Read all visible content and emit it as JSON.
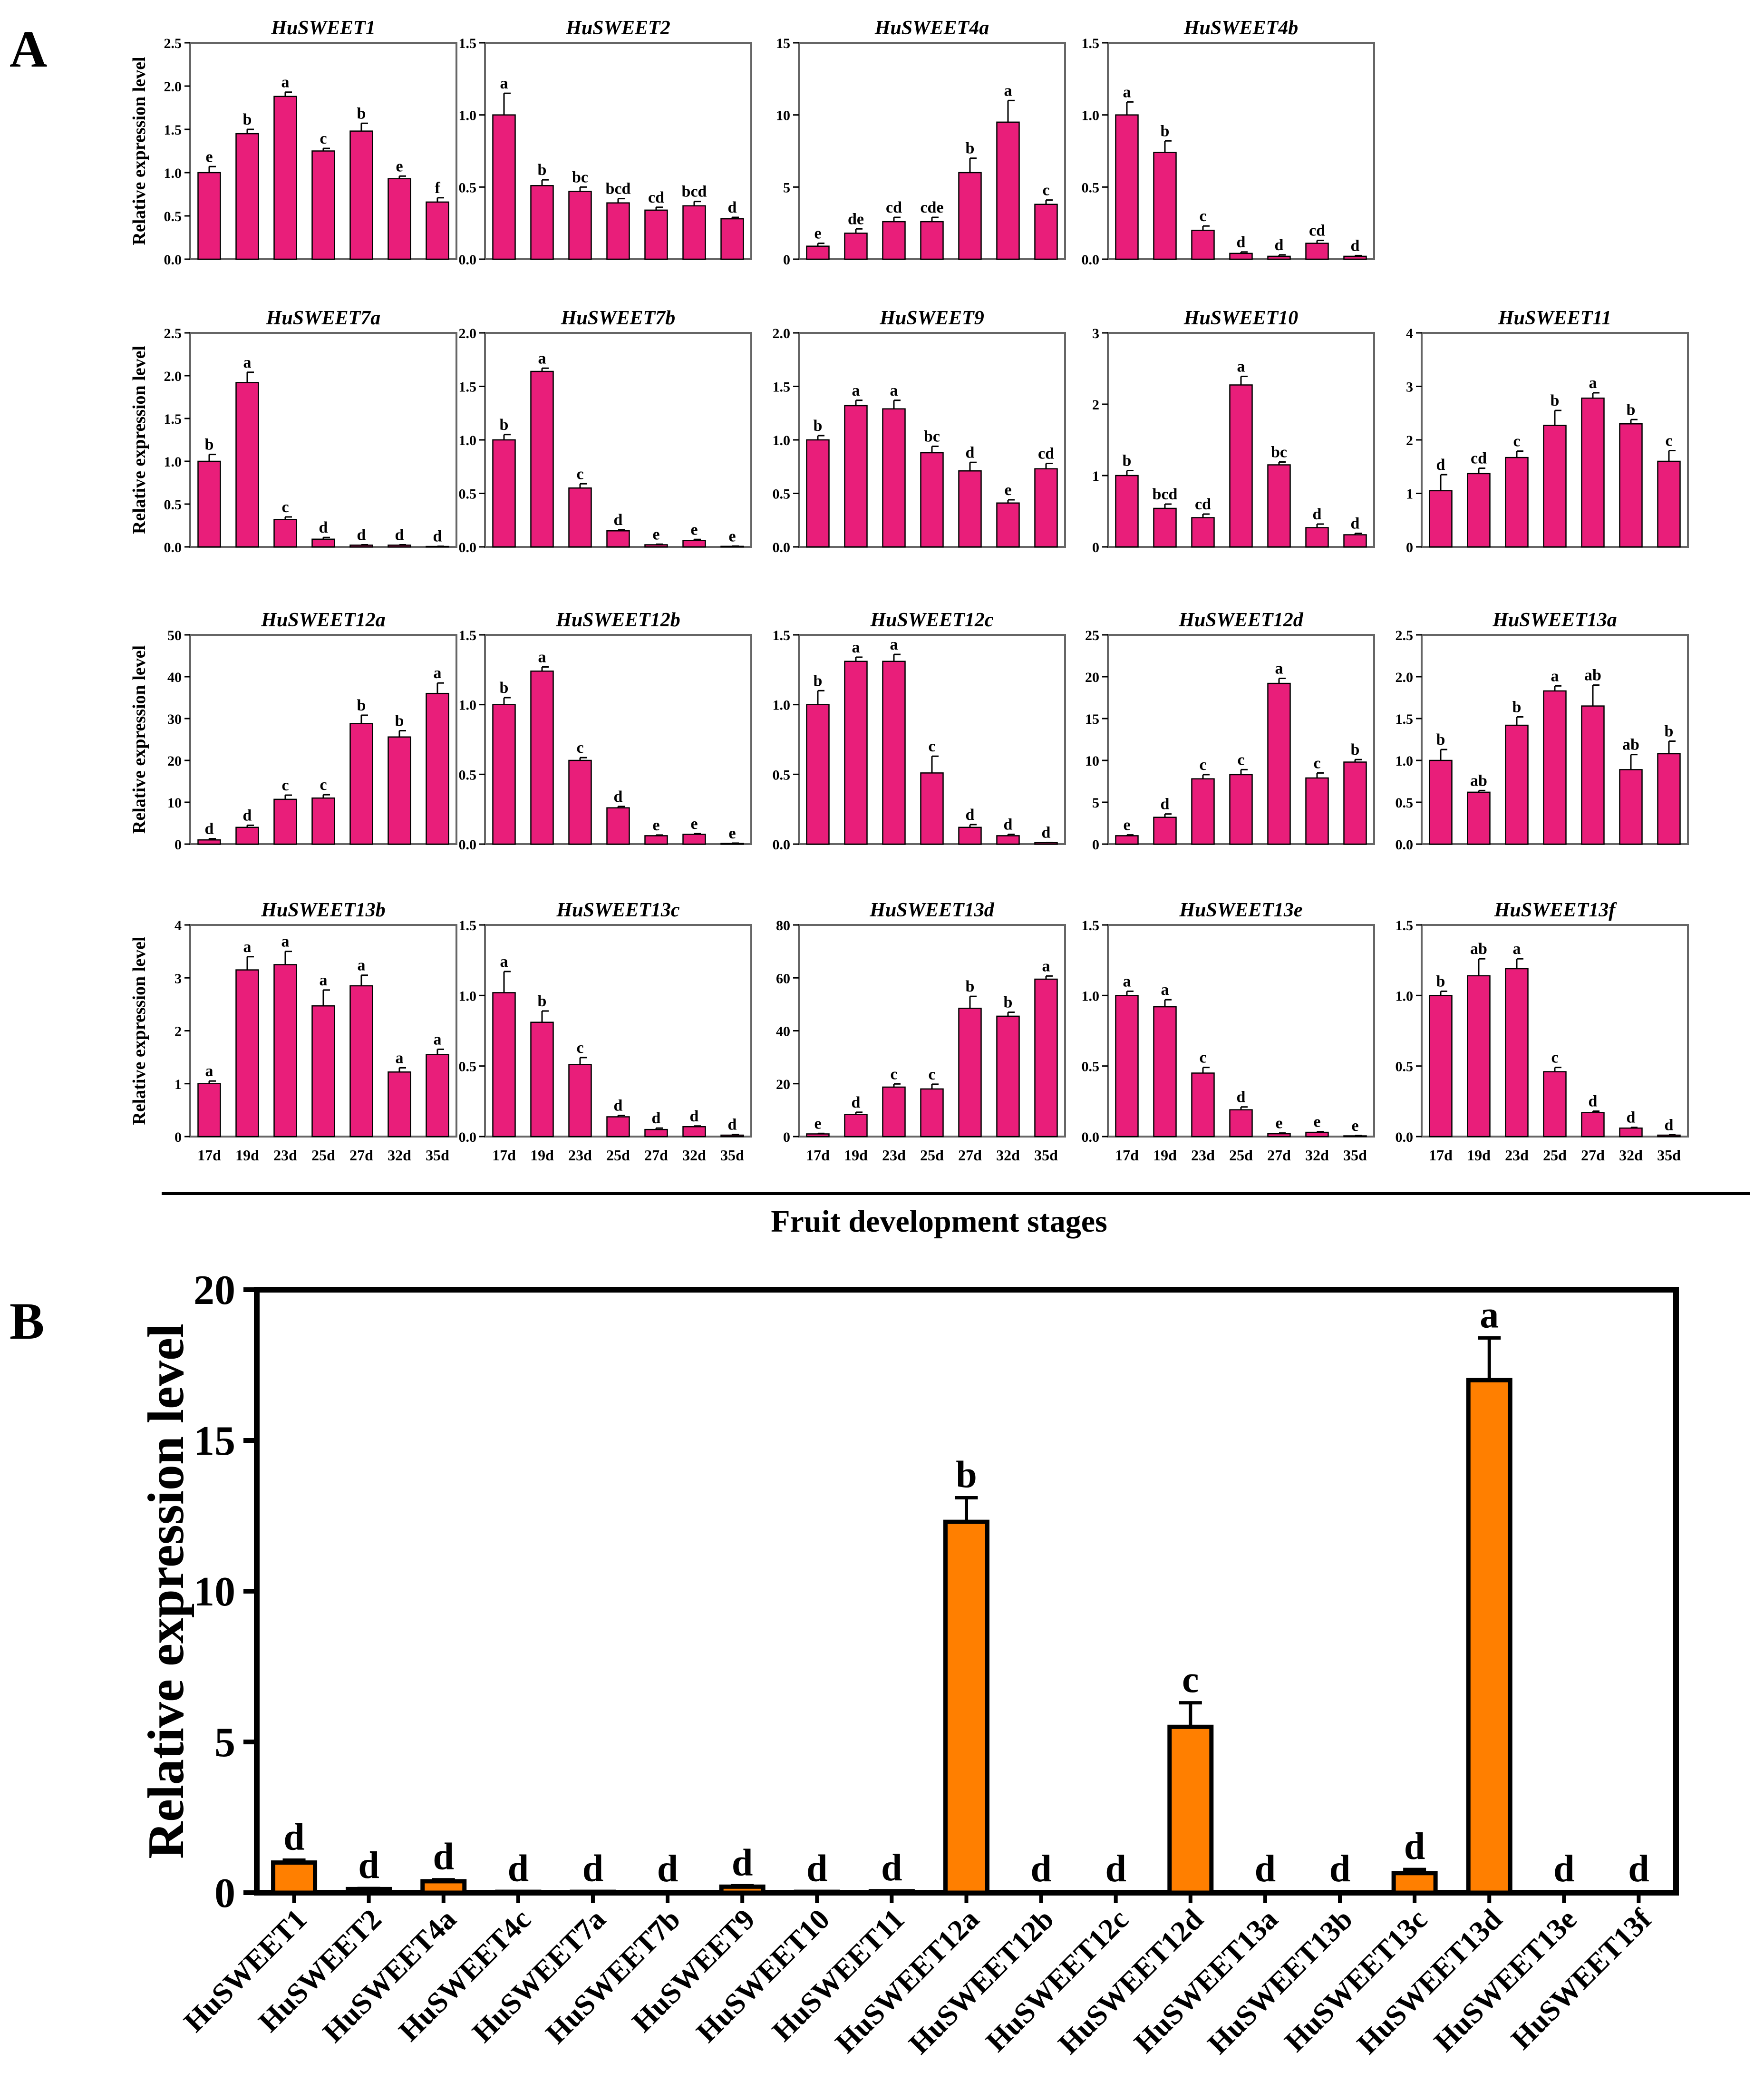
{
  "colors": {
    "panel_a_bar": "#E91E7A",
    "panel_b_bar": "#FF7F00",
    "axis": "#000000",
    "panel_a_frame": "#666666"
  },
  "panel_labels": {
    "a": "A",
    "b": "B"
  },
  "panel_a": {
    "shared_xlabel": "Fruit development stages",
    "ylabel": "Relative expression level",
    "stages": [
      "17d",
      "19d",
      "23d",
      "25d",
      "27d",
      "32d",
      "35d"
    ]
  },
  "chart_data": [
    {
      "type": "bar",
      "title": "HuSWEET1",
      "categories": [
        "17d",
        "19d",
        "23d",
        "25d",
        "27d",
        "32d",
        "35d"
      ],
      "values": [
        1.0,
        1.45,
        1.88,
        1.25,
        1.48,
        0.93,
        0.66
      ],
      "errors": [
        0.07,
        0.05,
        0.05,
        0.03,
        0.09,
        0.03,
        0.05
      ],
      "letters": [
        "e",
        "b",
        "a",
        "c",
        "b",
        "e",
        "f"
      ],
      "ylim": [
        0,
        2.5
      ],
      "yticks": [
        "0.0",
        "0.5",
        "1.0",
        "1.5",
        "2.0",
        "2.5"
      ],
      "ylabel": "Relative expression level"
    },
    {
      "type": "bar",
      "title": "HuSWEET2",
      "categories": [
        "17d",
        "19d",
        "23d",
        "25d",
        "27d",
        "32d",
        "35d"
      ],
      "values": [
        1.0,
        0.51,
        0.47,
        0.39,
        0.34,
        0.37,
        0.28
      ],
      "errors": [
        0.15,
        0.04,
        0.03,
        0.03,
        0.02,
        0.03,
        0.01
      ],
      "letters": [
        "a",
        "b",
        "bc",
        "bcd",
        "cd",
        "bcd",
        "d"
      ],
      "ylim": [
        0,
        1.5
      ],
      "yticks": [
        "0.0",
        "0.5",
        "1.0",
        "1.5"
      ],
      "ylabel": ""
    },
    {
      "type": "bar",
      "title": "HuSWEET4a",
      "categories": [
        "17d",
        "19d",
        "23d",
        "25d",
        "27d",
        "32d",
        "35d"
      ],
      "values": [
        0.9,
        1.8,
        2.6,
        2.6,
        6.0,
        9.5,
        3.8
      ],
      "errors": [
        0.2,
        0.3,
        0.3,
        0.3,
        1.0,
        1.5,
        0.3
      ],
      "letters": [
        "e",
        "de",
        "cd",
        "cde",
        "b",
        "a",
        "c"
      ],
      "ylim": [
        0,
        15
      ],
      "yticks": [
        "0",
        "5",
        "10",
        "15"
      ],
      "ylabel": ""
    },
    {
      "type": "bar",
      "title": "HuSWEET4b",
      "categories": [
        "17d",
        "19d",
        "23d",
        "25d",
        "27d",
        "32d",
        "35d"
      ],
      "values": [
        1.0,
        0.74,
        0.2,
        0.04,
        0.02,
        0.11,
        0.02
      ],
      "errors": [
        0.09,
        0.08,
        0.03,
        0.01,
        0.01,
        0.02,
        0.005
      ],
      "letters": [
        "a",
        "b",
        "c",
        "d",
        "d",
        "cd",
        "d"
      ],
      "ylim": [
        0,
        1.5
      ],
      "yticks": [
        "0.0",
        "0.5",
        "1.0",
        "1.5"
      ],
      "ylabel": ""
    },
    {
      "type": "bar",
      "title": "HuSWEET7a",
      "categories": [
        "17d",
        "19d",
        "23d",
        "25d",
        "27d",
        "32d",
        "35d"
      ],
      "values": [
        1.0,
        1.92,
        0.32,
        0.09,
        0.02,
        0.02,
        0.005
      ],
      "errors": [
        0.08,
        0.12,
        0.03,
        0.02,
        0.005,
        0.005,
        0.002
      ],
      "letters": [
        "b",
        "a",
        "c",
        "d",
        "d",
        "d",
        "d"
      ],
      "ylim": [
        0,
        2.5
      ],
      "yticks": [
        "0.0",
        "0.5",
        "1.0",
        "1.5",
        "2.0",
        "2.5"
      ],
      "ylabel": "Relative expression level"
    },
    {
      "type": "bar",
      "title": "HuSWEET7b",
      "categories": [
        "17d",
        "19d",
        "23d",
        "25d",
        "27d",
        "32d",
        "35d"
      ],
      "values": [
        1.0,
        1.64,
        0.55,
        0.15,
        0.02,
        0.06,
        0.005
      ],
      "errors": [
        0.05,
        0.03,
        0.04,
        0.01,
        0.005,
        0.01,
        0.002
      ],
      "letters": [
        "b",
        "a",
        "c",
        "d",
        "e",
        "e",
        "e"
      ],
      "ylim": [
        0,
        2.0
      ],
      "yticks": [
        "0.0",
        "0.5",
        "1.0",
        "1.5",
        "2.0"
      ],
      "ylabel": ""
    },
    {
      "type": "bar",
      "title": "HuSWEET9",
      "categories": [
        "17d",
        "19d",
        "23d",
        "25d",
        "27d",
        "32d",
        "35d"
      ],
      "values": [
        1.0,
        1.32,
        1.29,
        0.88,
        0.71,
        0.41,
        0.73
      ],
      "errors": [
        0.04,
        0.05,
        0.08,
        0.06,
        0.08,
        0.03,
        0.05
      ],
      "letters": [
        "b",
        "a",
        "a",
        "bc",
        "d",
        "e",
        "cd"
      ],
      "ylim": [
        0,
        2.0
      ],
      "yticks": [
        "0.0",
        "0.5",
        "1.0",
        "1.5",
        "2.0"
      ],
      "ylabel": ""
    },
    {
      "type": "bar",
      "title": "HuSWEET10",
      "categories": [
        "17d",
        "19d",
        "23d",
        "25d",
        "27d",
        "32d",
        "35d"
      ],
      "values": [
        1.0,
        0.54,
        0.41,
        2.27,
        1.15,
        0.27,
        0.17
      ],
      "errors": [
        0.07,
        0.06,
        0.05,
        0.12,
        0.04,
        0.05,
        0.02
      ],
      "letters": [
        "b",
        "bcd",
        "cd",
        "a",
        "bc",
        "d",
        "d"
      ],
      "ylim": [
        0,
        3
      ],
      "yticks": [
        "0",
        "1",
        "2",
        "3"
      ],
      "ylabel": ""
    },
    {
      "type": "bar",
      "title": "HuSWEET11",
      "categories": [
        "17d",
        "19d",
        "23d",
        "25d",
        "27d",
        "32d",
        "35d"
      ],
      "values": [
        1.05,
        1.37,
        1.67,
        2.27,
        2.78,
        2.3,
        1.6
      ],
      "errors": [
        0.3,
        0.1,
        0.12,
        0.28,
        0.1,
        0.08,
        0.2
      ],
      "letters": [
        "d",
        "cd",
        "c",
        "b",
        "a",
        "b",
        "c"
      ],
      "ylim": [
        0,
        4
      ],
      "yticks": [
        "0",
        "1",
        "2",
        "3",
        "4"
      ],
      "ylabel": ""
    },
    {
      "type": "bar",
      "title": "HuSWEET12a",
      "categories": [
        "17d",
        "19d",
        "23d",
        "25d",
        "27d",
        "32d",
        "35d"
      ],
      "values": [
        1.0,
        4.0,
        10.7,
        11.0,
        28.8,
        25.6,
        36.0
      ],
      "errors": [
        0.3,
        0.5,
        1.0,
        0.8,
        2.0,
        1.5,
        2.5
      ],
      "letters": [
        "d",
        "d",
        "c",
        "c",
        "b",
        "b",
        "a"
      ],
      "ylim": [
        0,
        50
      ],
      "yticks": [
        "0",
        "10",
        "20",
        "30",
        "40",
        "50"
      ],
      "ylabel": "Relative expression level"
    },
    {
      "type": "bar",
      "title": "HuSWEET12b",
      "categories": [
        "17d",
        "19d",
        "23d",
        "25d",
        "27d",
        "32d",
        "35d"
      ],
      "values": [
        1.0,
        1.24,
        0.6,
        0.26,
        0.06,
        0.07,
        0.005
      ],
      "errors": [
        0.05,
        0.03,
        0.02,
        0.01,
        0.005,
        0.005,
        0.002
      ],
      "letters": [
        "b",
        "a",
        "c",
        "d",
        "e",
        "e",
        "e"
      ],
      "ylim": [
        0,
        1.5
      ],
      "yticks": [
        "0.0",
        "0.5",
        "1.0",
        "1.5"
      ],
      "ylabel": ""
    },
    {
      "type": "bar",
      "title": "HuSWEET12c",
      "categories": [
        "17d",
        "19d",
        "23d",
        "25d",
        "27d",
        "32d",
        "35d"
      ],
      "values": [
        1.0,
        1.31,
        1.31,
        0.51,
        0.12,
        0.06,
        0.01
      ],
      "errors": [
        0.1,
        0.03,
        0.05,
        0.12,
        0.02,
        0.01,
        0.002
      ],
      "letters": [
        "b",
        "a",
        "a",
        "c",
        "d",
        "d",
        "d"
      ],
      "ylim": [
        0,
        1.5
      ],
      "yticks": [
        "0.0",
        "0.5",
        "1.0",
        "1.5"
      ],
      "ylabel": ""
    },
    {
      "type": "bar",
      "title": "HuSWEET12d",
      "categories": [
        "17d",
        "19d",
        "23d",
        "25d",
        "27d",
        "32d",
        "35d"
      ],
      "values": [
        1.0,
        3.2,
        7.8,
        8.3,
        19.2,
        7.9,
        9.8
      ],
      "errors": [
        0.1,
        0.4,
        0.5,
        0.6,
        0.6,
        0.6,
        0.3
      ],
      "letters": [
        "e",
        "d",
        "c",
        "c",
        "a",
        "c",
        "b"
      ],
      "ylim": [
        0,
        25
      ],
      "yticks": [
        "0",
        "5",
        "10",
        "15",
        "20",
        "25"
      ],
      "ylabel": ""
    },
    {
      "type": "bar",
      "title": "HuSWEET13a",
      "categories": [
        "17d",
        "19d",
        "23d",
        "25d",
        "27d",
        "32d",
        "35d"
      ],
      "values": [
        1.0,
        0.62,
        1.42,
        1.83,
        1.65,
        0.89,
        1.08
      ],
      "errors": [
        0.13,
        0.02,
        0.1,
        0.06,
        0.25,
        0.18,
        0.15
      ],
      "letters": [
        "b",
        "ab",
        "b",
        "a",
        "ab",
        "ab",
        "b"
      ],
      "ylim": [
        0,
        2.5
      ],
      "yticks": [
        "0.0",
        "0.5",
        "1.0",
        "1.5",
        "2.0",
        "2.5"
      ],
      "ylabel": ""
    },
    {
      "type": "bar",
      "title": "HuSWEET13b",
      "categories": [
        "17d",
        "19d",
        "23d",
        "25d",
        "27d",
        "32d",
        "35d"
      ],
      "values": [
        1.0,
        3.15,
        3.25,
        2.47,
        2.85,
        1.22,
        1.55
      ],
      "errors": [
        0.05,
        0.25,
        0.25,
        0.3,
        0.2,
        0.08,
        0.1
      ],
      "letters": [
        "a",
        "a",
        "a",
        "a",
        "a",
        "a",
        "a"
      ],
      "ylim": [
        0,
        4
      ],
      "yticks": [
        "0",
        "1",
        "2",
        "3",
        "4"
      ],
      "ylabel": "Relative expression level"
    },
    {
      "type": "bar",
      "title": "HuSWEET13c",
      "categories": [
        "17d",
        "19d",
        "23d",
        "25d",
        "27d",
        "32d",
        "35d"
      ],
      "values": [
        1.02,
        0.81,
        0.51,
        0.14,
        0.05,
        0.07,
        0.01
      ],
      "errors": [
        0.15,
        0.08,
        0.05,
        0.01,
        0.01,
        0.005,
        0.005
      ],
      "letters": [
        "a",
        "b",
        "c",
        "d",
        "d",
        "d",
        "d"
      ],
      "ylim": [
        0,
        1.5
      ],
      "yticks": [
        "0.0",
        "0.5",
        "1.0",
        "1.5"
      ],
      "ylabel": ""
    },
    {
      "type": "bar",
      "title": "HuSWEET13d",
      "categories": [
        "17d",
        "19d",
        "23d",
        "25d",
        "27d",
        "32d",
        "35d"
      ],
      "values": [
        1.0,
        8.4,
        18.7,
        18.0,
        48.5,
        45.5,
        59.5
      ],
      "errors": [
        0.2,
        0.8,
        1.2,
        1.8,
        4.5,
        1.5,
        1.2
      ],
      "letters": [
        "e",
        "d",
        "c",
        "c",
        "b",
        "b",
        "a"
      ],
      "ylim": [
        0,
        80
      ],
      "yticks": [
        "0",
        "20",
        "40",
        "60",
        "80"
      ],
      "ylabel": ""
    },
    {
      "type": "bar",
      "title": "HuSWEET13e",
      "categories": [
        "17d",
        "19d",
        "23d",
        "25d",
        "27d",
        "32d",
        "35d"
      ],
      "values": [
        1.0,
        0.92,
        0.45,
        0.19,
        0.02,
        0.03,
        0.005
      ],
      "errors": [
        0.03,
        0.05,
        0.04,
        0.02,
        0.005,
        0.005,
        0.002
      ],
      "letters": [
        "a",
        "a",
        "c",
        "d",
        "e",
        "e",
        "e"
      ],
      "ylim": [
        0,
        1.5
      ],
      "yticks": [
        "0.0",
        "0.5",
        "1.0",
        "1.5"
      ],
      "ylabel": ""
    },
    {
      "type": "bar",
      "title": "HuSWEET13f",
      "categories": [
        "17d",
        "19d",
        "23d",
        "25d",
        "27d",
        "32d",
        "35d"
      ],
      "values": [
        1.0,
        1.14,
        1.19,
        0.46,
        0.17,
        0.06,
        0.01
      ],
      "errors": [
        0.03,
        0.12,
        0.07,
        0.03,
        0.01,
        0.005,
        0.002
      ],
      "letters": [
        "b",
        "ab",
        "a",
        "c",
        "d",
        "d",
        "d"
      ],
      "ylim": [
        0,
        1.5
      ],
      "yticks": [
        "0.0",
        "0.5",
        "1.0",
        "1.5"
      ],
      "ylabel": ""
    },
    {
      "type": "bar",
      "title": "",
      "categories": [
        "HuSWEET1",
        "HuSWEET2",
        "HuSWEET4a",
        "HuSWEET4c",
        "HuSWEET7a",
        "HuSWEET7b",
        "HuSWEET9",
        "HuSWEET10",
        "HuSWEET11",
        "HuSWEET12a",
        "HuSWEET12b",
        "HuSWEET12c",
        "HuSWEET12d",
        "HuSWEET13a",
        "HuSWEET13b",
        "HuSWEET13c",
        "HuSWEET13d",
        "HuSWEET13e",
        "HuSWEET13f"
      ],
      "values": [
        1.0,
        0.12,
        0.38,
        0.03,
        0.03,
        0.02,
        0.2,
        0.03,
        0.05,
        12.3,
        0.02,
        0.02,
        5.5,
        0.02,
        0.02,
        0.65,
        17.0,
        0.02,
        0.02
      ],
      "errors": [
        0.08,
        0.02,
        0.05,
        0.01,
        0.01,
        0.01,
        0.03,
        0.01,
        0.01,
        0.8,
        0.01,
        0.01,
        0.8,
        0.01,
        0.01,
        0.12,
        1.4,
        0.01,
        0.01
      ],
      "letters": [
        "d",
        "d",
        "d",
        "d",
        "d",
        "d",
        "d",
        "d",
        "d",
        "b",
        "d",
        "d",
        "c",
        "d",
        "d",
        "d",
        "a",
        "d",
        "d"
      ],
      "ylim": [
        0,
        20
      ],
      "yticks": [
        "0",
        "5",
        "10",
        "15",
        "20"
      ],
      "ylabel": "Relative expression level",
      "xlabel": ""
    }
  ]
}
